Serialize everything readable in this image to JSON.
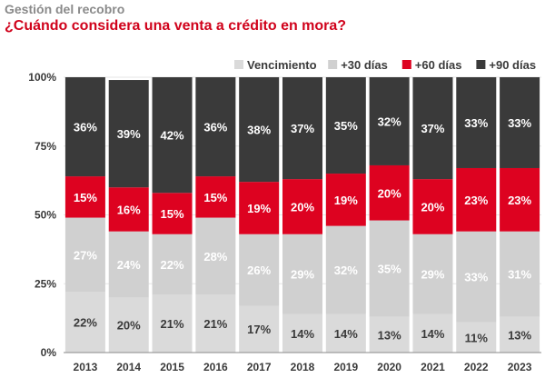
{
  "header": {
    "subtitle": "Gestión del recobro",
    "title": "¿Cuándo considera una venta a crédito en mora?"
  },
  "chart_data": {
    "type": "bar",
    "stacked": true,
    "percent": true,
    "categories": [
      "2013",
      "2014",
      "2015",
      "2016",
      "2017",
      "2018",
      "2019",
      "2020",
      "2021",
      "2022",
      "2023"
    ],
    "series": [
      {
        "name": "Vencimiento",
        "color": "#dadada",
        "label_color": "#3a3a3a",
        "values": [
          22,
          20,
          21,
          21,
          17,
          14,
          14,
          13,
          14,
          11,
          13
        ]
      },
      {
        "name": "+30 días",
        "color": "#d0d0d0",
        "label_color": "#ffffff",
        "values": [
          27,
          24,
          22,
          28,
          26,
          29,
          32,
          35,
          29,
          33,
          31
        ]
      },
      {
        "name": "+60 días",
        "color": "#dd0220",
        "label_color": "#ffffff",
        "values": [
          15,
          16,
          15,
          15,
          19,
          20,
          19,
          20,
          20,
          23,
          23
        ]
      },
      {
        "name": "+90 días",
        "color": "#3a3a3a",
        "label_color": "#ffffff",
        "values": [
          36,
          39,
          42,
          36,
          38,
          37,
          35,
          32,
          37,
          33,
          33
        ]
      }
    ],
    "y_ticks": [
      "0%",
      "25%",
      "50%",
      "75%",
      "100%"
    ],
    "ylim": [
      0,
      100
    ],
    "grid": true,
    "legend_position": "top-right"
  }
}
